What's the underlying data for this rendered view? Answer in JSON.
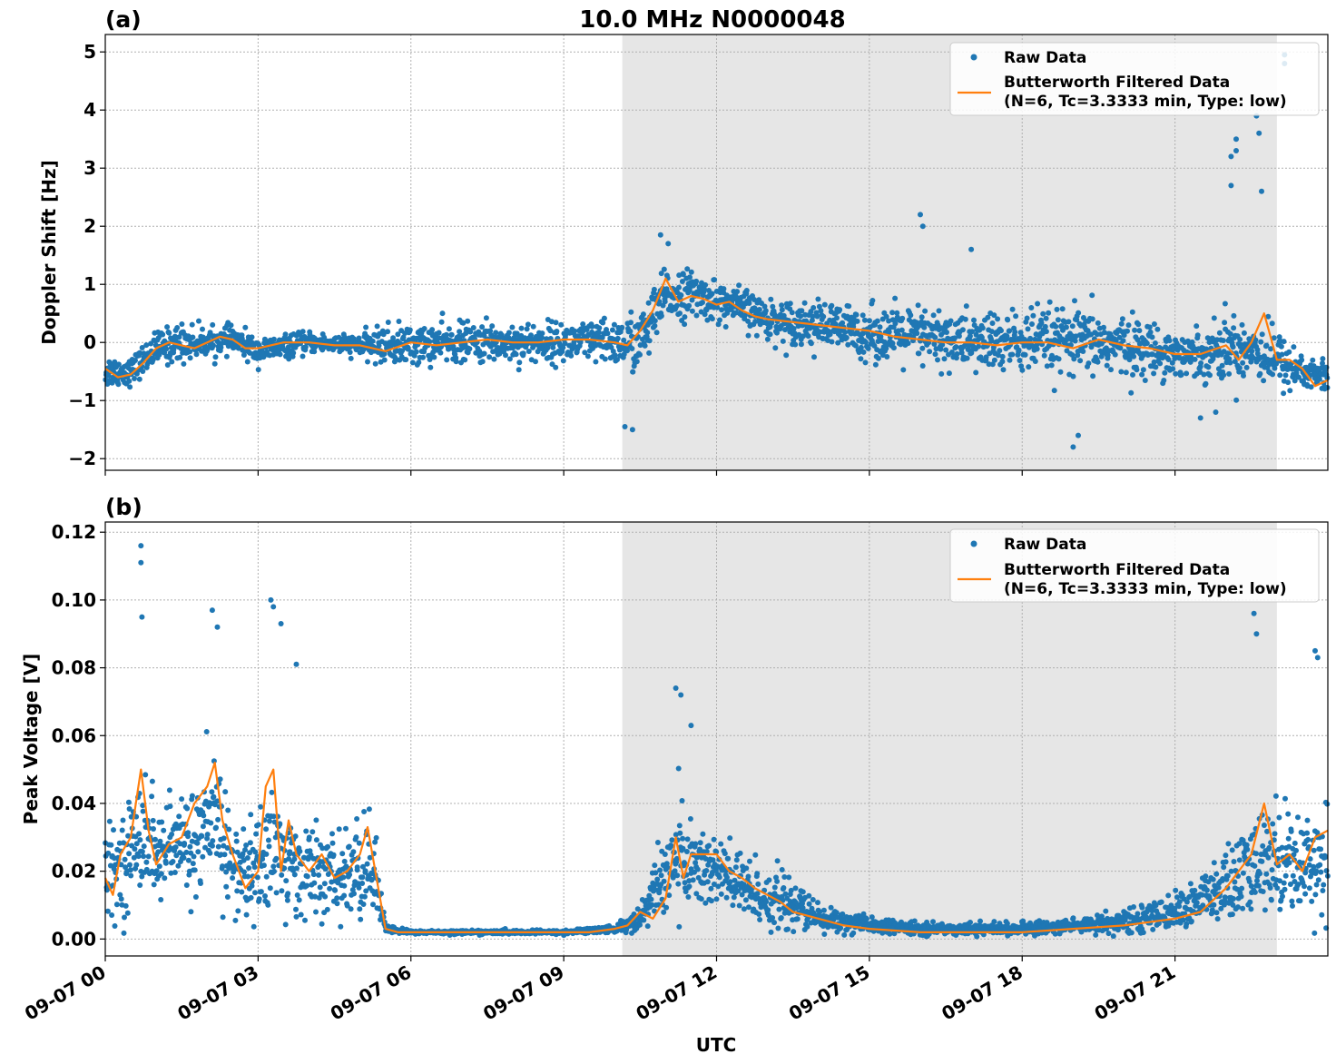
{
  "figure": {
    "title": "10.0 MHz N0000048",
    "xlabel": "UTC",
    "x_ticks": [
      "09-07 00",
      "09-07 03",
      "09-07 06",
      "09-07 09",
      "09-07 12",
      "09-07 15",
      "09-07 18",
      "09-07 21"
    ]
  },
  "legend": {
    "raw": "Raw Data",
    "filtered_line1": "Butterworth Filtered Data",
    "filtered_line2": "(N=6, Tc=3.3333 min, Type: low)"
  },
  "colors": {
    "raw": "#1f77b4",
    "filtered": "#ff7f0e",
    "shade": "#e6e6e6"
  },
  "chart_data": [
    {
      "type": "scatter",
      "panel_label": "(a)",
      "ylabel": "Doppler Shift [Hz]",
      "xlim": [
        0,
        24
      ],
      "x_units": "hours UTC on 09-07",
      "ylim": [
        -2.2,
        5.3
      ],
      "y_ticks": [
        -2,
        -1,
        0,
        1,
        2,
        3,
        4,
        5
      ],
      "y_tick_labels": [
        "−2",
        "−1",
        "0",
        "1",
        "2",
        "3",
        "4",
        "5"
      ],
      "grid": true,
      "legend_position": "top-right",
      "shaded_interval": [
        10.15,
        23.0
      ],
      "series": [
        {
          "name": "Raw Data",
          "style": "markers",
          "x": [
            0,
            0.5,
            1,
            1.5,
            2,
            2.5,
            3,
            4,
            5,
            5.5,
            6,
            7,
            8,
            9,
            10,
            10.5,
            11,
            11.5,
            12,
            12.5,
            13,
            14,
            15,
            16,
            17,
            18,
            19,
            20,
            21,
            21.5,
            22,
            22.5,
            23,
            23.5,
            24
          ],
          "center": [
            -0.5,
            -0.5,
            -0.1,
            0.0,
            0.0,
            0.05,
            -0.15,
            0.0,
            -0.05,
            -0.05,
            -0.05,
            0.0,
            0.0,
            0.0,
            0.0,
            0.0,
            0.8,
            0.85,
            0.7,
            0.6,
            0.4,
            0.3,
            0.15,
            0.1,
            0.0,
            0.0,
            0.0,
            -0.05,
            -0.2,
            -0.2,
            -0.1,
            -0.1,
            -0.3,
            -0.5,
            -0.6
          ],
          "spread": [
            0.25,
            0.2,
            0.25,
            0.3,
            0.2,
            0.2,
            0.2,
            0.15,
            0.15,
            0.3,
            0.3,
            0.3,
            0.3,
            0.3,
            0.35,
            0.5,
            0.4,
            0.35,
            0.3,
            0.3,
            0.3,
            0.35,
            0.4,
            0.45,
            0.45,
            0.5,
            0.5,
            0.45,
            0.35,
            0.35,
            0.5,
            0.45,
            0.45,
            0.3,
            0.25
          ],
          "outliers_x": [
            10.9,
            11.05,
            16.0,
            16.05,
            17.0,
            19.0,
            19.1,
            22.1,
            22.1,
            22.2,
            22.2,
            22.6,
            22.65,
            22.7,
            23.15,
            23.15,
            10.2,
            10.35,
            21.8,
            21.5
          ],
          "outliers_y": [
            1.85,
            1.7,
            2.2,
            2.0,
            1.6,
            -1.8,
            -1.6,
            3.2,
            2.7,
            3.5,
            3.3,
            3.9,
            3.6,
            2.6,
            4.95,
            4.8,
            -1.45,
            -1.5,
            -1.2,
            -1.3
          ]
        },
        {
          "name": "Butterworth Filtered Data\n(N=6, Tc=3.3333 min, Type: low)",
          "style": "line",
          "x": [
            0,
            0.25,
            0.5,
            0.75,
            1,
            1.25,
            1.5,
            1.75,
            2,
            2.25,
            2.5,
            2.75,
            3,
            3.5,
            4,
            4.5,
            5,
            5.5,
            6,
            6.5,
            7,
            7.5,
            8,
            8.5,
            9,
            9.5,
            10,
            10.25,
            10.5,
            10.75,
            11,
            11.25,
            11.5,
            11.75,
            12,
            12.25,
            12.5,
            12.75,
            13,
            13.5,
            14,
            14.5,
            15,
            15.5,
            16,
            16.5,
            17,
            17.5,
            18,
            18.5,
            19,
            19.5,
            20,
            20.5,
            21,
            21.5,
            22,
            22.25,
            22.5,
            22.75,
            23,
            23.25,
            23.5,
            23.75,
            24
          ],
          "y": [
            -0.45,
            -0.6,
            -0.55,
            -0.35,
            -0.1,
            0.0,
            -0.05,
            -0.1,
            0.0,
            0.1,
            0.05,
            -0.1,
            -0.1,
            0.0,
            0.0,
            -0.05,
            -0.05,
            -0.15,
            0.0,
            -0.05,
            0.0,
            0.05,
            0.0,
            0.0,
            0.05,
            0.05,
            0.0,
            -0.05,
            0.2,
            0.55,
            1.1,
            0.7,
            0.8,
            0.75,
            0.65,
            0.7,
            0.55,
            0.45,
            0.4,
            0.35,
            0.3,
            0.25,
            0.2,
            0.1,
            0.05,
            0.0,
            0.0,
            -0.05,
            0.0,
            0.0,
            -0.1,
            0.05,
            -0.05,
            -0.1,
            -0.2,
            -0.2,
            -0.05,
            -0.3,
            0.0,
            0.5,
            -0.3,
            -0.3,
            -0.45,
            -0.75,
            -0.65
          ]
        }
      ]
    },
    {
      "type": "scatter",
      "panel_label": "(b)",
      "ylabel": "Peak Voltage [V]",
      "xlim": [
        0,
        24
      ],
      "x_units": "hours UTC on 09-07",
      "ylim": [
        -0.005,
        0.123
      ],
      "y_ticks": [
        0.0,
        0.02,
        0.04,
        0.06,
        0.08,
        0.1,
        0.12
      ],
      "y_tick_labels": [
        "0.00",
        "0.02",
        "0.04",
        "0.06",
        "0.08",
        "0.10",
        "0.12"
      ],
      "grid": true,
      "legend_position": "top-right",
      "shaded_interval": [
        10.15,
        23.0
      ],
      "series": [
        {
          "name": "Raw Data",
          "style": "markers",
          "x": [
            0,
            0.5,
            0.75,
            1,
            1.5,
            2,
            2.25,
            2.5,
            3,
            3.25,
            3.5,
            4,
            4.5,
            5,
            5.25,
            5.5,
            6,
            7,
            8,
            9,
            10,
            10.5,
            11,
            11.25,
            11.5,
            12,
            12.5,
            13,
            13.5,
            14,
            15,
            16,
            17,
            18,
            19,
            20,
            21,
            22,
            22.5,
            23,
            23.5,
            24
          ],
          "center": [
            0.018,
            0.025,
            0.035,
            0.025,
            0.028,
            0.03,
            0.035,
            0.02,
            0.02,
            0.03,
            0.022,
            0.02,
            0.018,
            0.02,
            0.022,
            0.003,
            0.002,
            0.002,
            0.002,
            0.002,
            0.003,
            0.006,
            0.02,
            0.025,
            0.022,
            0.02,
            0.015,
            0.012,
            0.01,
            0.006,
            0.004,
            0.003,
            0.003,
            0.003,
            0.004,
            0.005,
            0.008,
            0.015,
            0.02,
            0.025,
            0.022,
            0.025
          ],
          "spread": [
            0.01,
            0.014,
            0.018,
            0.012,
            0.012,
            0.016,
            0.02,
            0.012,
            0.014,
            0.02,
            0.014,
            0.012,
            0.01,
            0.014,
            0.014,
            0.001,
            0.0005,
            0.0005,
            0.0005,
            0.0005,
            0.001,
            0.003,
            0.012,
            0.014,
            0.012,
            0.011,
            0.009,
            0.008,
            0.006,
            0.004,
            0.002,
            0.0015,
            0.0015,
            0.0015,
            0.002,
            0.003,
            0.004,
            0.01,
            0.013,
            0.015,
            0.012,
            0.015
          ],
          "outliers_x": [
            0.7,
            0.7,
            0.72,
            2.1,
            2.2,
            3.25,
            3.3,
            3.45,
            3.75,
            11.2,
            11.3,
            11.5,
            22.55,
            22.6,
            23.75,
            23.8
          ],
          "outliers_y": [
            0.116,
            0.111,
            0.095,
            0.097,
            0.092,
            0.1,
            0.098,
            0.093,
            0.081,
            0.074,
            0.072,
            0.063,
            0.096,
            0.09,
            0.085,
            0.083
          ]
        },
        {
          "name": "Butterworth Filtered Data\n(N=6, Tc=3.3333 min, Type: low)",
          "style": "line",
          "x": [
            0,
            0.15,
            0.3,
            0.5,
            0.7,
            0.85,
            1,
            1.25,
            1.5,
            1.75,
            2,
            2.15,
            2.3,
            2.5,
            2.75,
            3,
            3.15,
            3.3,
            3.45,
            3.6,
            3.75,
            4,
            4.25,
            4.5,
            4.75,
            5,
            5.15,
            5.3,
            5.5,
            5.75,
            6,
            7,
            8,
            9,
            9.5,
            10,
            10.25,
            10.5,
            10.75,
            11,
            11.2,
            11.35,
            11.5,
            11.75,
            12,
            12.25,
            12.5,
            12.75,
            13,
            13.25,
            13.5,
            14,
            14.5,
            15,
            16,
            17,
            18,
            19,
            20,
            21,
            21.5,
            22,
            22.25,
            22.5,
            22.75,
            23,
            23.25,
            23.5,
            23.75,
            24
          ],
          "y": [
            0.018,
            0.013,
            0.025,
            0.03,
            0.05,
            0.032,
            0.022,
            0.028,
            0.03,
            0.04,
            0.045,
            0.052,
            0.035,
            0.025,
            0.015,
            0.02,
            0.045,
            0.05,
            0.02,
            0.035,
            0.025,
            0.02,
            0.025,
            0.018,
            0.02,
            0.025,
            0.033,
            0.02,
            0.003,
            0.002,
            0.002,
            0.002,
            0.002,
            0.002,
            0.002,
            0.003,
            0.004,
            0.008,
            0.006,
            0.012,
            0.03,
            0.018,
            0.025,
            0.025,
            0.025,
            0.02,
            0.018,
            0.015,
            0.013,
            0.011,
            0.008,
            0.006,
            0.004,
            0.003,
            0.002,
            0.002,
            0.002,
            0.003,
            0.004,
            0.006,
            0.008,
            0.015,
            0.02,
            0.025,
            0.04,
            0.022,
            0.025,
            0.02,
            0.03,
            0.032
          ]
        }
      ]
    }
  ]
}
